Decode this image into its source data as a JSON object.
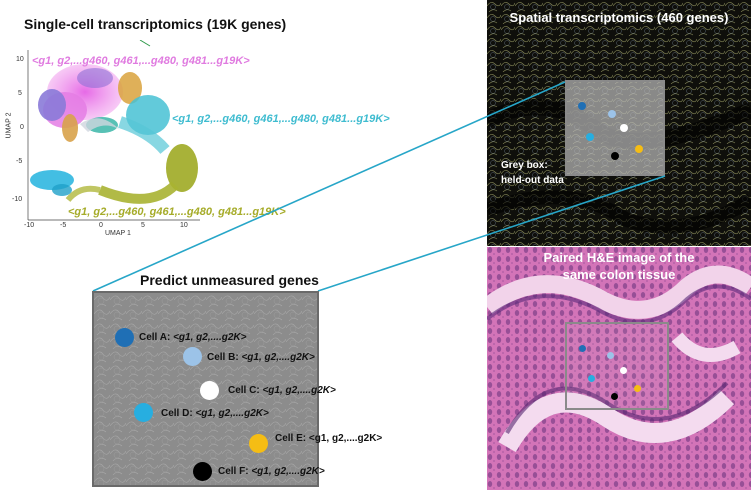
{
  "umap": {
    "title": "Single-cell transcriptomics (19K genes)",
    "gene_label_pink": "<g1, g2,...g460, g461,...g480, g481...g19K>",
    "gene_label_cyan": "<g1, g2,...g460, g461,...g480, g481...g19K>",
    "gene_label_olive": "<g1, g2,...g460, g461,...g480, g481...g19K>",
    "xlabel": "UMAP 1",
    "ylabel": "UMAP 2",
    "xticks": [
      "-10",
      "-5",
      "0",
      "5",
      "10"
    ],
    "yticks": [
      "10",
      "5",
      "0",
      "-5",
      "-10"
    ]
  },
  "spatial": {
    "title": "Spatial transcriptomics (460 genes)",
    "greybox_line1": "Grey box:",
    "greybox_line2": "held-out data"
  },
  "he": {
    "title_line1": "Paired H&E image of the",
    "title_line2": "same colon tissue"
  },
  "predict": {
    "title": "Predict unmeasured genes",
    "cells": [
      {
        "name": "Cell A:",
        "genes": "<g1, g2,....g2K>",
        "color": "#1f6fb5"
      },
      {
        "name": "Cell B:",
        "genes": "<g1, g2,....g2K>",
        "color": "#9cc3e8"
      },
      {
        "name": "Cell C:",
        "genes": "<g1, g2,....g2K>",
        "color": "#ffffff"
      },
      {
        "name": "Cell D:",
        "genes": "<g1, g2,....g2K>",
        "color": "#27aee0"
      },
      {
        "name": "Cell E:",
        "genes": "<g1, g2,....g2K>",
        "color": "#f5bd14"
      },
      {
        "name": "Cell F:",
        "genes": "<g1, g2,....g2K>",
        "color": "#000000"
      }
    ]
  },
  "colors": {
    "connector": "#27a6c8",
    "pink": "#e07be0",
    "cyan": "#3fbcd0",
    "olive": "#a6ac2a"
  }
}
